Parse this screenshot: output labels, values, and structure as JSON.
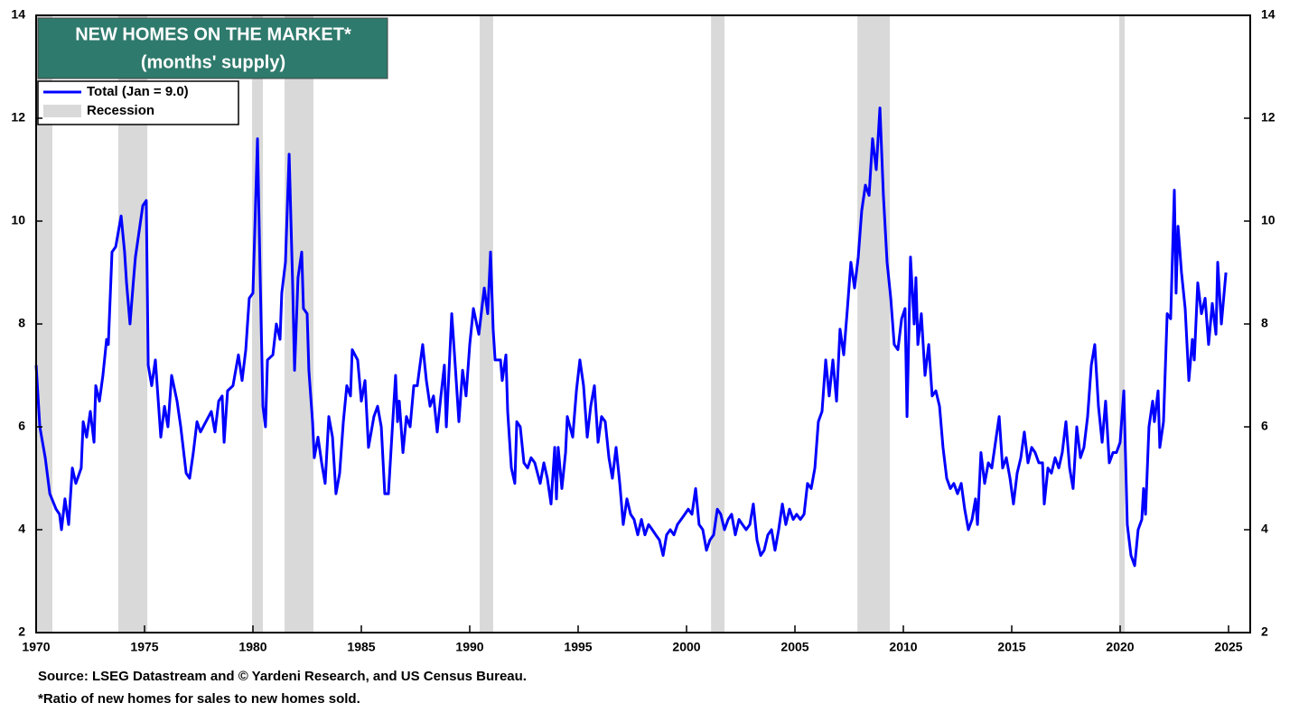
{
  "chart_data": {
    "type": "line",
    "title": "NEW HOMES ON THE MARKET*",
    "subtitle": "(months' supply)",
    "source": "Source: LSEG Datastream and © Yardeni Research, and US Census Bureau.",
    "footnote": "*Ratio of new homes for sales to new homes sold.",
    "xlim": [
      1970,
      2026
    ],
    "xticks": [
      1970,
      1975,
      1980,
      1985,
      1990,
      1995,
      2000,
      2005,
      2010,
      2015,
      2020,
      2025
    ],
    "ylim": [
      2,
      14
    ],
    "yticks": [
      2,
      4,
      6,
      8,
      10,
      12,
      14
    ],
    "grid": false,
    "recession_name": "Recession",
    "recession_color": "#d9d9d9",
    "recessions": [
      [
        1970.0,
        1970.75
      ],
      [
        1973.79,
        1975.13
      ],
      [
        1979.96,
        1980.46
      ],
      [
        1981.46,
        1982.79
      ],
      [
        1990.46,
        1991.08
      ],
      [
        2001.13,
        2001.75
      ],
      [
        2007.88,
        2009.38
      ],
      [
        2019.96,
        2020.21
      ]
    ],
    "x": [
      1970.0,
      1970.17,
      1970.42,
      1970.63,
      1970.92,
      1971.08,
      1971.17,
      1971.33,
      1971.5,
      1971.67,
      1971.83,
      1972.08,
      1972.17,
      1972.33,
      1972.5,
      1972.67,
      1972.75,
      1972.92,
      1973.08,
      1973.25,
      1973.33,
      1973.5,
      1973.67,
      1973.92,
      1974.08,
      1974.17,
      1974.33,
      1974.5,
      1974.58,
      1974.75,
      1974.92,
      1975.08,
      1975.17,
      1975.33,
      1975.5,
      1975.75,
      1975.92,
      1976.08,
      1976.25,
      1976.5,
      1976.67,
      1976.92,
      1977.08,
      1977.25,
      1977.42,
      1977.58,
      1977.83,
      1978.08,
      1978.25,
      1978.42,
      1978.58,
      1978.67,
      1978.83,
      1979.08,
      1979.33,
      1979.5,
      1979.67,
      1979.83,
      1980.0,
      1980.21,
      1980.33,
      1980.46,
      1980.58,
      1980.67,
      1980.92,
      1981.08,
      1981.25,
      1981.33,
      1981.5,
      1981.67,
      1981.83,
      1981.92,
      1982.08,
      1982.25,
      1982.33,
      1982.5,
      1982.58,
      1982.75,
      1982.83,
      1983.0,
      1983.17,
      1983.33,
      1983.5,
      1983.67,
      1983.83,
      1984.0,
      1984.17,
      1984.33,
      1984.5,
      1984.58,
      1984.83,
      1985.0,
      1985.17,
      1985.33,
      1985.58,
      1985.75,
      1985.92,
      1986.08,
      1986.25,
      1986.42,
      1986.58,
      1986.67,
      1986.75,
      1986.92,
      1987.08,
      1987.25,
      1987.42,
      1987.58,
      1987.83,
      1988.0,
      1988.17,
      1988.33,
      1988.5,
      1988.67,
      1988.83,
      1988.92,
      1989.08,
      1989.17,
      1989.33,
      1989.5,
      1989.67,
      1989.83,
      1990.0,
      1990.17,
      1990.42,
      1990.67,
      1990.83,
      1990.96,
      1991.08,
      1991.17,
      1991.42,
      1991.5,
      1991.67,
      1991.75,
      1991.92,
      1992.08,
      1992.17,
      1992.33,
      1992.5,
      1992.67,
      1992.83,
      1993.0,
      1993.25,
      1993.42,
      1993.58,
      1993.75,
      1993.92,
      1994.0,
      1994.08,
      1994.25,
      1994.42,
      1994.5,
      1994.75,
      1994.92,
      1995.08,
      1995.25,
      1995.42,
      1995.58,
      1995.75,
      1995.92,
      1996.08,
      1996.25,
      1996.42,
      1996.58,
      1996.75,
      1996.92,
      1997.08,
      1997.25,
      1997.42,
      1997.58,
      1997.75,
      1997.92,
      1998.08,
      1998.25,
      1998.42,
      1998.58,
      1998.75,
      1998.92,
      1999.08,
      1999.25,
      1999.42,
      1999.58,
      1999.75,
      1999.92,
      2000.08,
      2000.25,
      2000.42,
      2000.58,
      2000.75,
      2000.92,
      2001.08,
      2001.25,
      2001.42,
      2001.58,
      2001.75,
      2001.92,
      2002.08,
      2002.25,
      2002.42,
      2002.58,
      2002.75,
      2002.92,
      2003.08,
      2003.25,
      2003.42,
      2003.58,
      2003.75,
      2003.92,
      2004.08,
      2004.25,
      2004.42,
      2004.58,
      2004.75,
      2004.92,
      2005.08,
      2005.25,
      2005.42,
      2005.58,
      2005.75,
      2005.92,
      2006.08,
      2006.25,
      2006.42,
      2006.58,
      2006.75,
      2006.92,
      2007.08,
      2007.25,
      2007.42,
      2007.58,
      2007.75,
      2007.92,
      2008.08,
      2008.25,
      2008.42,
      2008.58,
      2008.75,
      2008.92,
      2009.08,
      2009.25,
      2009.42,
      2009.58,
      2009.75,
      2009.92,
      2010.08,
      2010.17,
      2010.33,
      2010.5,
      2010.58,
      2010.67,
      2010.83,
      2011.0,
      2011.17,
      2011.33,
      2011.5,
      2011.67,
      2011.83,
      2012.0,
      2012.17,
      2012.33,
      2012.5,
      2012.67,
      2012.83,
      2013.0,
      2013.17,
      2013.33,
      2013.42,
      2013.58,
      2013.75,
      2013.92,
      2014.08,
      2014.25,
      2014.42,
      2014.58,
      2014.75,
      2014.92,
      2015.08,
      2015.25,
      2015.42,
      2015.58,
      2015.75,
      2015.92,
      2016.08,
      2016.25,
      2016.42,
      2016.5,
      2016.67,
      2016.83,
      2017.0,
      2017.17,
      2017.33,
      2017.5,
      2017.67,
      2017.83,
      2018.0,
      2018.17,
      2018.33,
      2018.5,
      2018.67,
      2018.83,
      2019.0,
      2019.17,
      2019.33,
      2019.5,
      2019.67,
      2019.83,
      2020.0,
      2020.17,
      2020.33,
      2020.5,
      2020.67,
      2020.83,
      2021.0,
      2021.08,
      2021.17,
      2021.33,
      2021.5,
      2021.58,
      2021.75,
      2021.83,
      2022.0,
      2022.17,
      2022.33,
      2022.5,
      2022.58,
      2022.67,
      2022.83,
      2023.0,
      2023.17,
      2023.33,
      2023.42,
      2023.58,
      2023.75,
      2023.92,
      2024.08,
      2024.25,
      2024.42,
      2024.5,
      2024.67,
      2024.88
    ],
    "series": [
      {
        "name": "Total (Jan = 9.0)",
        "color": "#0000ff",
        "values": [
          7.2,
          6.0,
          5.4,
          4.7,
          4.4,
          4.3,
          4.0,
          4.6,
          4.1,
          5.2,
          4.9,
          5.2,
          6.1,
          5.8,
          6.3,
          5.7,
          6.8,
          6.5,
          7.0,
          7.7,
          7.6,
          9.4,
          9.5,
          10.1,
          9.4,
          8.8,
          8.0,
          8.9,
          9.3,
          9.8,
          10.3,
          10.4,
          7.2,
          6.8,
          7.3,
          5.8,
          6.4,
          6.0,
          7.0,
          6.5,
          6.0,
          5.1,
          5.0,
          5.5,
          6.1,
          5.9,
          6.1,
          6.3,
          5.9,
          6.5,
          6.6,
          5.7,
          6.7,
          6.8,
          7.4,
          6.9,
          7.5,
          8.5,
          8.6,
          11.6,
          9.0,
          6.4,
          6.0,
          7.3,
          7.4,
          8.0,
          7.7,
          8.6,
          9.2,
          11.3,
          8.8,
          7.1,
          8.9,
          9.4,
          8.3,
          8.2,
          7.1,
          6.1,
          5.4,
          5.8,
          5.3,
          4.9,
          6.2,
          5.8,
          4.7,
          5.1,
          6.1,
          6.8,
          6.6,
          7.5,
          7.3,
          6.5,
          6.9,
          5.6,
          6.2,
          6.4,
          6.0,
          4.7,
          4.7,
          5.9,
          7.0,
          6.1,
          6.5,
          5.5,
          6.2,
          6.0,
          6.8,
          6.8,
          7.6,
          6.9,
          6.4,
          6.6,
          5.9,
          6.6,
          7.2,
          6.0,
          7.4,
          8.2,
          7.2,
          6.1,
          7.1,
          6.6,
          7.6,
          8.3,
          7.8,
          8.7,
          8.2,
          9.4,
          7.9,
          7.3,
          7.3,
          6.9,
          7.4,
          6.3,
          5.2,
          4.9,
          6.1,
          6.0,
          5.3,
          5.2,
          5.4,
          5.3,
          4.9,
          5.3,
          5.0,
          4.5,
          5.6,
          4.6,
          5.6,
          4.8,
          5.5,
          6.2,
          5.8,
          6.7,
          7.3,
          6.8,
          5.8,
          6.4,
          6.8,
          5.7,
          6.2,
          6.1,
          5.4,
          5.0,
          5.6,
          4.9,
          4.1,
          4.6,
          4.3,
          4.2,
          3.9,
          4.2,
          3.9,
          4.1,
          4.0,
          3.9,
          3.8,
          3.5,
          3.9,
          4.0,
          3.9,
          4.1,
          4.2,
          4.3,
          4.4,
          4.3,
          4.8,
          4.1,
          4.0,
          3.6,
          3.8,
          3.9,
          4.4,
          4.3,
          4.0,
          4.2,
          4.3,
          3.9,
          4.2,
          4.1,
          4.0,
          4.1,
          4.5,
          3.8,
          3.5,
          3.6,
          3.9,
          4.0,
          3.6,
          4.0,
          4.5,
          4.1,
          4.4,
          4.2,
          4.3,
          4.2,
          4.3,
          4.9,
          4.8,
          5.2,
          6.1,
          6.3,
          7.3,
          6.6,
          7.3,
          6.5,
          7.9,
          7.4,
          8.3,
          9.2,
          8.7,
          9.3,
          10.2,
          10.7,
          10.5,
          11.6,
          11.0,
          12.2,
          10.5,
          9.2,
          8.5,
          7.6,
          7.5,
          8.1,
          8.3,
          6.2,
          9.3,
          8.0,
          8.9,
          7.6,
          8.2,
          7.0,
          7.6,
          6.6,
          6.7,
          6.4,
          5.6,
          5.0,
          4.8,
          4.9,
          4.7,
          4.9,
          4.4,
          4.0,
          4.2,
          4.6,
          4.1,
          5.5,
          4.9,
          5.3,
          5.2,
          5.7,
          6.2,
          5.2,
          5.4,
          5.0,
          4.5,
          5.1,
          5.4,
          5.9,
          5.3,
          5.6,
          5.5,
          5.3,
          5.3,
          4.5,
          5.2,
          5.1,
          5.4,
          5.2,
          5.5,
          6.1,
          5.2,
          4.8,
          6.0,
          5.4,
          5.6,
          6.2,
          7.2,
          7.6,
          6.4,
          5.7,
          6.5,
          5.3,
          5.5,
          5.5,
          5.7,
          6.7,
          4.1,
          3.5,
          3.3,
          4.0,
          4.2,
          4.8,
          4.3,
          6.0,
          6.5,
          6.1,
          6.7,
          5.6,
          6.1,
          8.2,
          8.1,
          10.6,
          8.6,
          9.9,
          9.0,
          8.3,
          6.9,
          7.7,
          7.3,
          8.8,
          8.2,
          8.5,
          7.6,
          8.4,
          7.8,
          9.2,
          8.0,
          9.0
        ]
      }
    ]
  }
}
